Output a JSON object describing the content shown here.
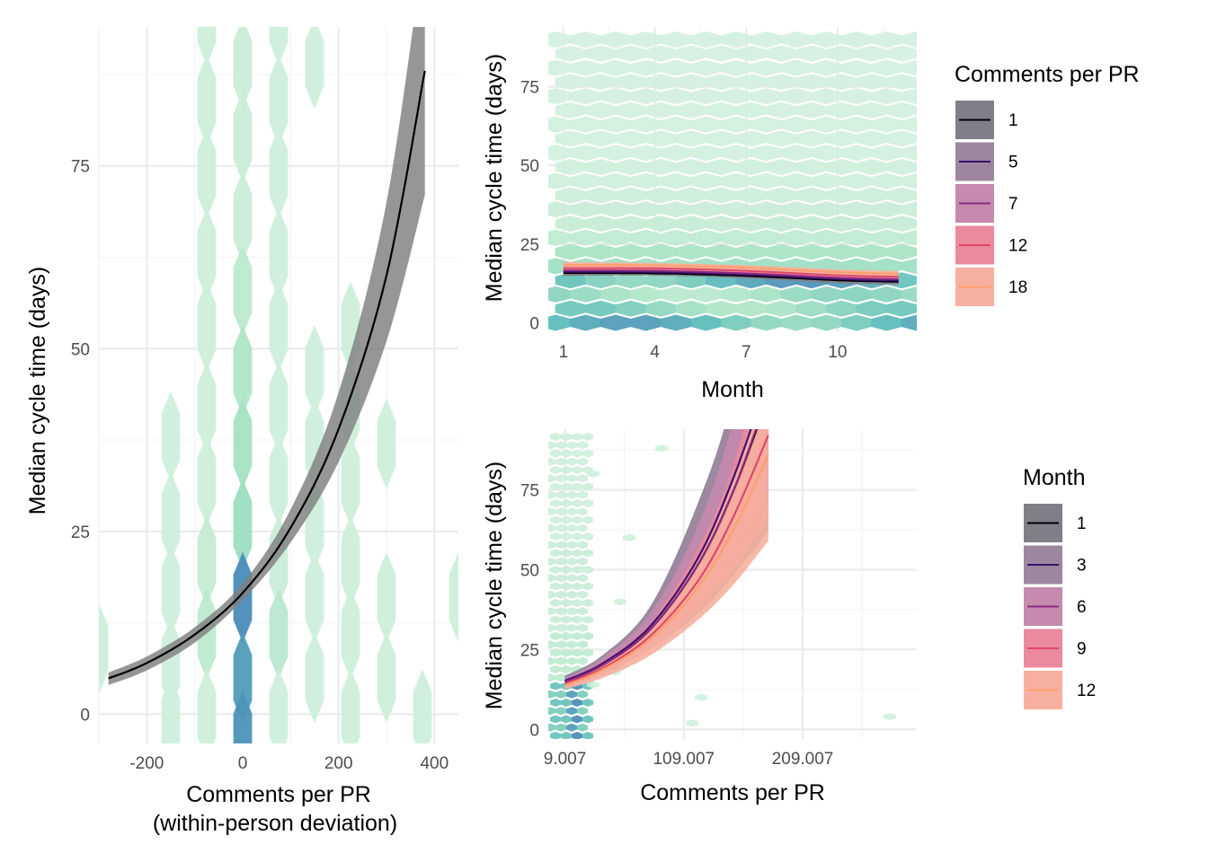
{
  "chart_data": [
    {
      "type": "line",
      "panel": "left",
      "xlabel": "Comments per PR",
      "xlabel2": "(within-person deviation)",
      "ylabel": "Median cycle time (days)",
      "xlim": [
        -300,
        450
      ],
      "ylim": [
        -4,
        94
      ],
      "xticks": [
        -200,
        0,
        200,
        400
      ],
      "yticks": [
        0,
        25,
        50,
        75
      ],
      "grid": true,
      "background_layer": "hexbin density",
      "line_color": "#000000",
      "ribbon_color": "#7f7f7f",
      "series": [
        {
          "x": [
            -280,
            -200,
            -100,
            0,
            100,
            200,
            300,
            380
          ],
          "y": [
            4.9,
            7.0,
            10.9,
            16.6,
            25.5,
            39.0,
            60.0,
            88.0
          ],
          "ymin": [
            4.0,
            6.0,
            9.8,
            15.6,
            23.5,
            34.5,
            51.0,
            71.0
          ],
          "ymax": [
            5.7,
            7.9,
            11.9,
            17.9,
            28.0,
            44.0,
            70.0,
            106.0
          ]
        }
      ],
      "hexbins": [
        {
          "x": -300,
          "y": 9,
          "d": 0.12
        },
        {
          "x": -150,
          "y": 38,
          "d": 0.12
        },
        {
          "x": -150,
          "y": 27,
          "d": 0.12
        },
        {
          "x": -150,
          "y": 17,
          "d": 0.12
        },
        {
          "x": -150,
          "y": 7,
          "d": 0.12
        },
        {
          "x": -150,
          "y": -1,
          "d": 0.12
        },
        {
          "x": -75,
          "y": 95,
          "d": 0.12
        },
        {
          "x": -75,
          "y": 84,
          "d": 0.12
        },
        {
          "x": -75,
          "y": 74,
          "d": 0.12
        },
        {
          "x": -75,
          "y": 63,
          "d": 0.12
        },
        {
          "x": -75,
          "y": 53,
          "d": 0.12
        },
        {
          "x": -75,
          "y": 42,
          "d": 0.12
        },
        {
          "x": -75,
          "y": 32,
          "d": 0.12
        },
        {
          "x": -75,
          "y": 21,
          "d": 0.18
        },
        {
          "x": -75,
          "y": 11,
          "d": 0.22
        },
        {
          "x": -75,
          "y": 0,
          "d": 0.12
        },
        {
          "x": 0,
          "y": 89,
          "d": 0.15
        },
        {
          "x": 0,
          "y": 79,
          "d": 0.15
        },
        {
          "x": 0,
          "y": 68,
          "d": 0.15
        },
        {
          "x": 0,
          "y": 58,
          "d": 0.22
        },
        {
          "x": 0,
          "y": 47,
          "d": 0.3
        },
        {
          "x": 0,
          "y": 37,
          "d": 0.35
        },
        {
          "x": 0,
          "y": 26,
          "d": 0.4
        },
        {
          "x": 0,
          "y": 16,
          "d": 1.0
        },
        {
          "x": 0,
          "y": 5,
          "d": 0.9
        },
        {
          "x": 0,
          "y": -3,
          "d": 0.95
        },
        {
          "x": 75,
          "y": 95,
          "d": 0.12
        },
        {
          "x": 75,
          "y": 84,
          "d": 0.12
        },
        {
          "x": 75,
          "y": 74,
          "d": 0.12
        },
        {
          "x": 75,
          "y": 63,
          "d": 0.12
        },
        {
          "x": 75,
          "y": 53,
          "d": 0.12
        },
        {
          "x": 75,
          "y": 42,
          "d": 0.12
        },
        {
          "x": 75,
          "y": 32,
          "d": 0.12
        },
        {
          "x": 75,
          "y": 21,
          "d": 0.15
        },
        {
          "x": 75,
          "y": 11,
          "d": 0.25
        },
        {
          "x": 75,
          "y": 0,
          "d": 0.12
        },
        {
          "x": 150,
          "y": 89,
          "d": 0.12
        },
        {
          "x": 150,
          "y": 47,
          "d": 0.12
        },
        {
          "x": 150,
          "y": 37,
          "d": 0.12
        },
        {
          "x": 150,
          "y": 26,
          "d": 0.12
        },
        {
          "x": 150,
          "y": 16,
          "d": 0.12
        },
        {
          "x": 150,
          "y": 5,
          "d": 0.12
        },
        {
          "x": 225,
          "y": 53,
          "d": 0.12
        },
        {
          "x": 225,
          "y": 42,
          "d": 0.12
        },
        {
          "x": 225,
          "y": 32,
          "d": 0.12
        },
        {
          "x": 225,
          "y": 21,
          "d": 0.12
        },
        {
          "x": 225,
          "y": 11,
          "d": 0.12
        },
        {
          "x": 225,
          "y": 0,
          "d": 0.12
        },
        {
          "x": 300,
          "y": 37,
          "d": 0.12
        },
        {
          "x": 300,
          "y": 16,
          "d": 0.12
        },
        {
          "x": 300,
          "y": 5,
          "d": 0.12
        },
        {
          "x": 375,
          "y": 0,
          "d": 0.12
        },
        {
          "x": 450,
          "y": 16,
          "d": 0.12
        }
      ]
    },
    {
      "type": "line",
      "panel": "top-right",
      "xlabel": "Month",
      "ylabel": "Median cycle time (days)",
      "xlim": [
        0.5,
        12.6
      ],
      "ylim": [
        -3,
        94
      ],
      "xticks": [
        1,
        4,
        7,
        10
      ],
      "yticks": [
        0,
        25,
        50,
        75
      ],
      "grid": true,
      "background_layer": "hexbin density",
      "legend": {
        "title": "Comments per PR",
        "position": "right"
      },
      "series": [
        {
          "name": "1",
          "color": "#000004",
          "fill": "#7f7f88",
          "x": [
            1,
            4,
            7,
            10,
            12
          ],
          "y": [
            15.8,
            15.7,
            14.9,
            13.5,
            13.0
          ],
          "ymin": [
            14.9,
            15.0,
            14.1,
            12.6,
            12.1
          ],
          "ymax": [
            16.7,
            16.4,
            15.7,
            14.4,
            13.9
          ]
        },
        {
          "name": "5",
          "color": "#3b0f70",
          "fill": "#9d87a0",
          "x": [
            1,
            4,
            7,
            10,
            12
          ],
          "y": [
            16.2,
            16.1,
            15.3,
            13.9,
            13.4
          ],
          "ymin": [
            15.3,
            15.4,
            14.5,
            13.0,
            12.5
          ],
          "ymax": [
            17.1,
            16.8,
            16.1,
            14.8,
            14.3
          ]
        },
        {
          "name": "7",
          "color": "#8c2981",
          "fill": "#c58aad",
          "x": [
            1,
            4,
            7,
            10,
            12
          ],
          "y": [
            16.6,
            16.5,
            15.7,
            14.3,
            13.8
          ],
          "ymin": [
            15.7,
            15.8,
            14.9,
            13.4,
            12.9
          ],
          "ymax": [
            17.5,
            17.2,
            16.5,
            15.2,
            14.7
          ]
        },
        {
          "name": "12",
          "color": "#de4968",
          "fill": "#ea8a9c",
          "x": [
            1,
            4,
            7,
            10,
            12
          ],
          "y": [
            17.4,
            17.3,
            16.5,
            15.1,
            14.6
          ],
          "ymin": [
            16.5,
            16.6,
            15.7,
            14.2,
            13.7
          ],
          "ymax": [
            18.3,
            18.0,
            17.3,
            16.0,
            15.5
          ]
        },
        {
          "name": "18",
          "color": "#fe9f6d",
          "fill": "#f7b09f",
          "x": [
            1,
            4,
            7,
            10,
            12
          ],
          "y": [
            18.4,
            18.3,
            17.5,
            16.1,
            15.6
          ],
          "ymin": [
            17.5,
            17.6,
            16.7,
            15.2,
            14.7
          ],
          "ymax": [
            19.3,
            19.0,
            18.3,
            17.0,
            16.5
          ]
        }
      ],
      "hexbins": {
        "rows": [
          {
            "y": 0,
            "d": 0.8
          },
          {
            "y": 4.5,
            "d": 0.55
          },
          {
            "y": 9,
            "d": 0.45
          },
          {
            "y": 13.5,
            "d": 0.85
          },
          {
            "y": 18,
            "d": 0.4
          },
          {
            "y": 22.5,
            "d": 0.35
          },
          {
            "y": 27,
            "d": 0.22
          },
          {
            "y": 31.5,
            "d": 0.18
          },
          {
            "y": 36,
            "d": 0.15
          },
          {
            "y": 40.5,
            "d": 0.13
          },
          {
            "y": 45,
            "d": 0.12
          },
          {
            "y": 49.5,
            "d": 0.12
          },
          {
            "y": 54,
            "d": 0.1
          },
          {
            "y": 58.5,
            "d": 0.1
          },
          {
            "y": 63,
            "d": 0.1
          },
          {
            "y": 67.5,
            "d": 0.1
          },
          {
            "y": 72,
            "d": 0.09
          },
          {
            "y": 76.5,
            "d": 0.09
          },
          {
            "y": 81,
            "d": 0.09
          },
          {
            "y": 85.5,
            "d": 0.09
          },
          {
            "y": 90,
            "d": 0.09
          }
        ]
      }
    },
    {
      "type": "line",
      "panel": "bottom-right",
      "xlabel": "Comments per PR",
      "ylabel": "Median cycle time (days)",
      "xlim": [
        -5,
        305
      ],
      "ylim": [
        -3,
        94
      ],
      "xticks": [
        9.007,
        109.007,
        209.007
      ],
      "xtick_labels": [
        "9.007",
        "109.007",
        "209.007"
      ],
      "yticks": [
        0,
        25,
        50,
        75
      ],
      "grid": true,
      "background_layer": "hexbin density",
      "legend": {
        "title": "Month",
        "position": "right"
      },
      "series": [
        {
          "name": "1",
          "color": "#000004",
          "fill": "#7f7f88",
          "x": [
            9,
            40,
            80,
            120,
            150,
            180
          ],
          "y": [
            15.2,
            20,
            31,
            51,
            74,
            104
          ],
          "ymin": [
            13.8,
            17.5,
            25,
            36,
            48,
            62
          ],
          "ymax": [
            16.8,
            23,
            38,
            70,
            104,
            160
          ]
        },
        {
          "name": "3",
          "color": "#3b0f70",
          "fill": "#9d87a0",
          "x": [
            9,
            40,
            80,
            120,
            150,
            180
          ],
          "y": [
            15.2,
            20.5,
            32,
            53,
            78,
            110
          ],
          "ymin": [
            13.9,
            18,
            26.5,
            39,
            53,
            70
          ],
          "ymax": [
            16.6,
            23,
            38,
            69,
            104,
            155
          ]
        },
        {
          "name": "6",
          "color": "#8c2981",
          "fill": "#c58aad",
          "x": [
            9,
            40,
            80,
            120,
            150,
            180
          ],
          "y": [
            14.8,
            20,
            31,
            51,
            74,
            105
          ],
          "ymin": [
            13.6,
            17.8,
            26.5,
            40,
            55,
            74
          ],
          "ymax": [
            16,
            22.2,
            36,
            63,
            96,
            145
          ]
        },
        {
          "name": "9",
          "color": "#de4968",
          "fill": "#ea8a9c",
          "x": [
            9,
            40,
            80,
            120,
            150,
            180
          ],
          "y": [
            14.3,
            19,
            29,
            46,
            66,
            92
          ],
          "ymin": [
            13.2,
            17,
            25,
            37,
            50,
            66
          ],
          "ymax": [
            15.4,
            21,
            33,
            56,
            82,
            124
          ]
        },
        {
          "name": "12",
          "color": "#fe9f6d",
          "fill": "#f7b09f",
          "x": [
            9,
            40,
            80,
            120,
            150,
            180
          ],
          "y": [
            13.8,
            18.5,
            28,
            44,
            62,
            86
          ],
          "ymin": [
            12.6,
            16,
            23,
            34,
            45,
            59
          ],
          "ymax": [
            15.0,
            20.5,
            32,
            53,
            78,
            115
          ]
        }
      ]
    }
  ]
}
